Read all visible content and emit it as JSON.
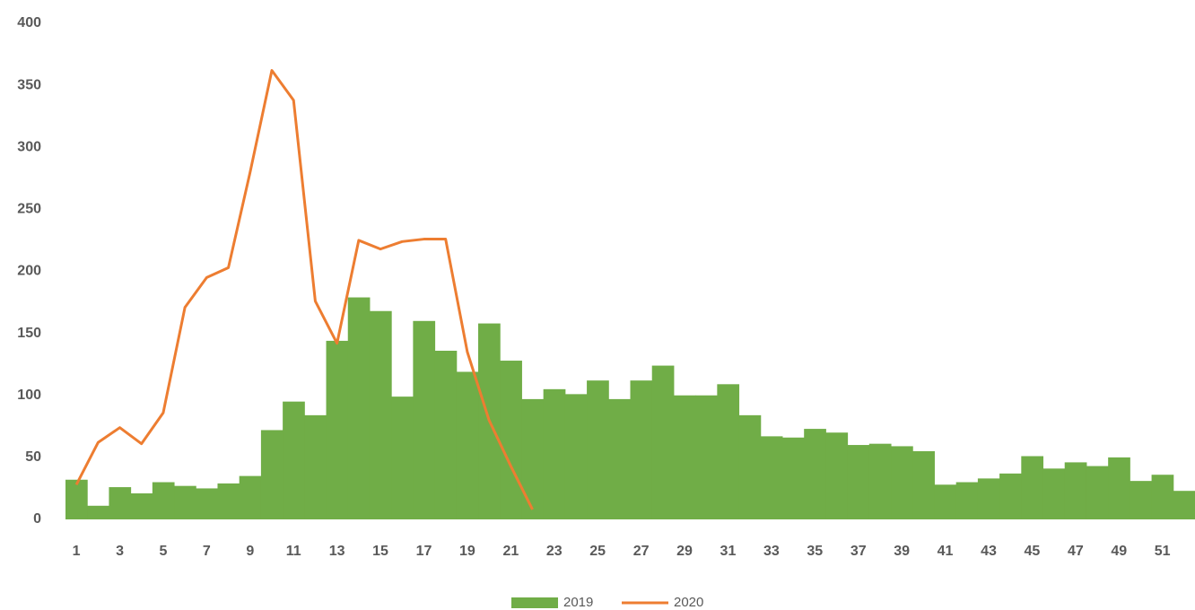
{
  "chart_data": {
    "type": "combo",
    "categories": [
      "1",
      null,
      "3",
      null,
      "5",
      null,
      "7",
      null,
      "9",
      null,
      "11",
      null,
      "13",
      null,
      "15",
      null,
      "17",
      null,
      "19",
      null,
      "21",
      null,
      "23",
      null,
      "25",
      null,
      "27",
      null,
      "29",
      null,
      "31",
      null,
      "33",
      null,
      "35",
      null,
      "37",
      null,
      "39",
      null,
      "41",
      null,
      "43",
      null,
      "45",
      null,
      "47",
      null,
      "49",
      null,
      "51",
      null
    ],
    "series": [
      {
        "name": "2019",
        "type": "bar",
        "color": "#70ad47",
        "values": [
          32,
          11,
          26,
          21,
          30,
          27,
          25,
          29,
          35,
          72,
          95,
          84,
          144,
          179,
          168,
          99,
          160,
          136,
          119,
          158,
          128,
          97,
          105,
          101,
          112,
          97,
          112,
          124,
          100,
          100,
          109,
          84,
          67,
          66,
          73,
          70,
          60,
          61,
          59,
          55,
          28,
          30,
          33,
          37,
          51,
          41,
          46,
          43,
          50,
          31,
          36,
          23
        ]
      },
      {
        "name": "2020",
        "type": "line",
        "color": "#ed7d31",
        "values": [
          28,
          62,
          74,
          61,
          86,
          171,
          195,
          203,
          280,
          362,
          338,
          176,
          142,
          225,
          218,
          224,
          226,
          226,
          135,
          80,
          43,
          8,
          null,
          null,
          null,
          null,
          null,
          null,
          null,
          null,
          null,
          null,
          null,
          null,
          null,
          null,
          null,
          null,
          null,
          null,
          null,
          null,
          null,
          null,
          null,
          null,
          null,
          null,
          null,
          null,
          null,
          null
        ]
      }
    ],
    "ylim": [
      0,
      400
    ],
    "yticks": [
      0,
      50,
      100,
      150,
      200,
      250,
      300,
      350,
      400
    ],
    "grid": false,
    "legend": "bottom"
  }
}
